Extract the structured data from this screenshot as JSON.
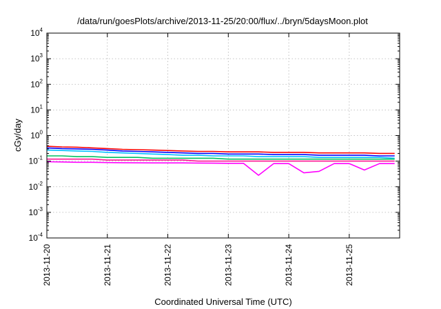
{
  "chart_data": {
    "type": "line",
    "title": "/data/run/goesPlots/archive/2013-11-25/20:00/flux/../bryn/5daysMoon.plot",
    "xlabel": "Coordinated Universal Time (UTC)",
    "ylabel": "cGy/day",
    "yscale": "log",
    "ylim": [
      0.0001,
      10000
    ],
    "xlim": [
      "2013-11-20",
      "2013-11-25T20:00"
    ],
    "grid": true,
    "legend": "none",
    "x_tick_labels": [
      "2013-11-20",
      "2013-11-21",
      "2013-11-22",
      "2013-11-23",
      "2013-11-24",
      "2013-11-25"
    ],
    "y_tick_labels": [
      {
        "base": "10",
        "exp": "4"
      },
      {
        "base": "10",
        "exp": "3"
      },
      {
        "base": "10",
        "exp": "2"
      },
      {
        "base": "10",
        "exp": "1"
      },
      {
        "base": "10",
        "exp": "0"
      },
      {
        "base": "10",
        "exp": "-1"
      },
      {
        "base": "10",
        "exp": "-2"
      },
      {
        "base": "10",
        "exp": "-3"
      },
      {
        "base": "10",
        "exp": "-4"
      }
    ],
    "series": [
      {
        "color": "#ff0000",
        "x": [
          "2013-11-20T00:00",
          "2013-11-20T06:00",
          "2013-11-20T12:00",
          "2013-11-20T18:00",
          "2013-11-21T00:00",
          "2013-11-21T06:00",
          "2013-11-21T12:00",
          "2013-11-21T18:00",
          "2013-11-22T00:00",
          "2013-11-22T06:00",
          "2013-11-22T12:00",
          "2013-11-22T18:00",
          "2013-11-23T00:00",
          "2013-11-23T06:00",
          "2013-11-23T12:00",
          "2013-11-23T18:00",
          "2013-11-24T00:00",
          "2013-11-24T06:00",
          "2013-11-24T12:00",
          "2013-11-24T18:00",
          "2013-11-25T00:00",
          "2013-11-25T06:00",
          "2013-11-25T12:00",
          "2013-11-25T18:00"
        ],
        "values": [
          0.38,
          0.36,
          0.35,
          0.33,
          0.31,
          0.29,
          0.28,
          0.27,
          0.26,
          0.25,
          0.24,
          0.24,
          0.23,
          0.23,
          0.23,
          0.22,
          0.22,
          0.22,
          0.21,
          0.21,
          0.21,
          0.21,
          0.2,
          0.2
        ]
      },
      {
        "color": "#0000ff",
        "x": [
          "2013-11-20T00:00",
          "2013-11-20T06:00",
          "2013-11-20T12:00",
          "2013-11-20T18:00",
          "2013-11-21T00:00",
          "2013-11-21T06:00",
          "2013-11-21T12:00",
          "2013-11-21T18:00",
          "2013-11-22T00:00",
          "2013-11-22T06:00",
          "2013-11-22T12:00",
          "2013-11-22T18:00",
          "2013-11-23T00:00",
          "2013-11-23T06:00",
          "2013-11-23T12:00",
          "2013-11-23T18:00",
          "2013-11-24T00:00",
          "2013-11-24T06:00",
          "2013-11-24T12:00",
          "2013-11-24T18:00",
          "2013-11-25T00:00",
          "2013-11-25T06:00",
          "2013-11-25T12:00",
          "2013-11-25T18:00"
        ],
        "values": [
          0.33,
          0.31,
          0.3,
          0.29,
          0.27,
          0.25,
          0.24,
          0.23,
          0.22,
          0.21,
          0.2,
          0.2,
          0.19,
          0.19,
          0.19,
          0.18,
          0.18,
          0.18,
          0.17,
          0.17,
          0.17,
          0.17,
          0.16,
          0.16
        ]
      },
      {
        "color": "#00bfff",
        "x": [
          "2013-11-20T00:00",
          "2013-11-20T06:00",
          "2013-11-20T12:00",
          "2013-11-20T18:00",
          "2013-11-21T00:00",
          "2013-11-21T06:00",
          "2013-11-21T12:00",
          "2013-11-21T18:00",
          "2013-11-22T00:00",
          "2013-11-22T06:00",
          "2013-11-22T12:00",
          "2013-11-22T18:00",
          "2013-11-23T00:00",
          "2013-11-23T06:00",
          "2013-11-23T12:00",
          "2013-11-23T18:00",
          "2013-11-24T00:00",
          "2013-11-24T06:00",
          "2013-11-24T12:00",
          "2013-11-24T18:00",
          "2013-11-25T00:00",
          "2013-11-25T06:00",
          "2013-11-25T12:00",
          "2013-11-25T18:00"
        ],
        "values": [
          0.27,
          0.26,
          0.25,
          0.24,
          0.22,
          0.21,
          0.2,
          0.19,
          0.18,
          0.17,
          0.17,
          0.16,
          0.16,
          0.16,
          0.15,
          0.15,
          0.15,
          0.15,
          0.14,
          0.14,
          0.14,
          0.14,
          0.14,
          0.13
        ]
      },
      {
        "color": "#00c060",
        "x": [
          "2013-11-20T00:00",
          "2013-11-20T06:00",
          "2013-11-20T12:00",
          "2013-11-20T18:00",
          "2013-11-21T00:00",
          "2013-11-21T06:00",
          "2013-11-21T12:00",
          "2013-11-21T18:00",
          "2013-11-22T00:00",
          "2013-11-22T06:00",
          "2013-11-22T12:00",
          "2013-11-22T18:00",
          "2013-11-23T00:00",
          "2013-11-23T06:00",
          "2013-11-23T12:00",
          "2013-11-23T18:00",
          "2013-11-24T00:00",
          "2013-11-24T06:00",
          "2013-11-24T12:00",
          "2013-11-24T18:00",
          "2013-11-25T00:00",
          "2013-11-25T06:00",
          "2013-11-25T12:00",
          "2013-11-25T18:00"
        ],
        "values": [
          0.16,
          0.16,
          0.15,
          0.15,
          0.14,
          0.14,
          0.14,
          0.13,
          0.13,
          0.13,
          0.13,
          0.13,
          0.12,
          0.12,
          0.12,
          0.12,
          0.12,
          0.12,
          0.12,
          0.12,
          0.12,
          0.12,
          0.12,
          0.12
        ]
      },
      {
        "color": "#ff1493",
        "x": [
          "2013-11-20T00:00",
          "2013-11-20T06:00",
          "2013-11-20T12:00",
          "2013-11-20T18:00",
          "2013-11-21T00:00",
          "2013-11-21T06:00",
          "2013-11-21T12:00",
          "2013-11-21T18:00",
          "2013-11-22T00:00",
          "2013-11-22T06:00",
          "2013-11-22T12:00",
          "2013-11-22T18:00",
          "2013-11-23T00:00",
          "2013-11-23T06:00",
          "2013-11-23T12:00",
          "2013-11-23T18:00",
          "2013-11-24T00:00",
          "2013-11-24T06:00",
          "2013-11-24T12:00",
          "2013-11-24T18:00",
          "2013-11-25T00:00",
          "2013-11-25T06:00",
          "2013-11-25T12:00",
          "2013-11-25T18:00"
        ],
        "values": [
          0.12,
          0.12,
          0.12,
          0.12,
          0.11,
          0.11,
          0.11,
          0.11,
          0.11,
          0.11,
          0.1,
          0.1,
          0.1,
          0.1,
          0.1,
          0.1,
          0.1,
          0.1,
          0.1,
          0.1,
          0.1,
          0.1,
          0.1,
          0.1
        ]
      },
      {
        "color": "#ff00ff",
        "x": [
          "2013-11-20T00:00",
          "2013-11-20T06:00",
          "2013-11-20T12:00",
          "2013-11-20T18:00",
          "2013-11-21T00:00",
          "2013-11-21T06:00",
          "2013-11-21T12:00",
          "2013-11-21T18:00",
          "2013-11-22T00:00",
          "2013-11-22T06:00",
          "2013-11-22T12:00",
          "2013-11-22T18:00",
          "2013-11-23T00:00",
          "2013-11-23T06:00",
          "2013-11-23T12:00",
          "2013-11-23T18:00",
          "2013-11-24T00:00",
          "2013-11-24T06:00",
          "2013-11-24T12:00",
          "2013-11-24T18:00",
          "2013-11-25T00:00",
          "2013-11-25T06:00",
          "2013-11-25T12:00",
          "2013-11-25T18:00"
        ],
        "values": [
          0.095,
          0.093,
          0.09,
          0.09,
          0.088,
          0.087,
          0.086,
          0.085,
          0.085,
          0.085,
          0.084,
          0.083,
          0.082,
          0.082,
          0.028,
          0.08,
          0.08,
          0.035,
          0.04,
          0.08,
          0.08,
          0.045,
          0.08,
          0.08
        ]
      }
    ]
  }
}
